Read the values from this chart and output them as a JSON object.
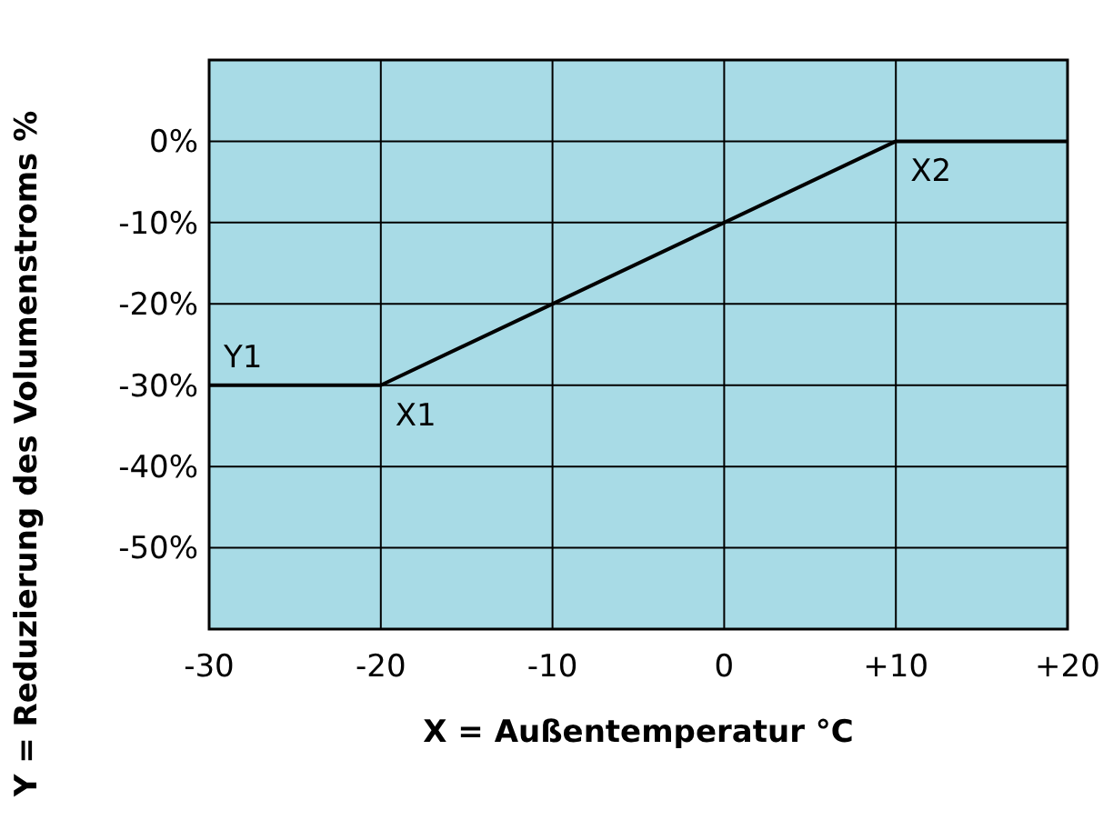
{
  "chart_data": {
    "type": "line",
    "xlabel": "X = Außentemperatur °C",
    "ylabel": "Y = Reduzierung des Volumenstroms %",
    "x": [
      -30,
      -20,
      10,
      20
    ],
    "series": [
      {
        "color": "#000000",
        "values": [
          -30,
          -30,
          0,
          0
        ]
      }
    ],
    "xlim": [
      -30,
      20
    ],
    "xticks": [
      -30,
      -20,
      -10,
      0,
      {
        "value": 10,
        "label": "+10"
      },
      {
        "value": 20,
        "label": "+20"
      }
    ],
    "ylim": [
      -60,
      10
    ],
    "yticks": [
      {
        "value": -60,
        "label": null
      },
      {
        "value": -50,
        "label": "-50%"
      },
      {
        "value": -40,
        "label": "-40%"
      },
      {
        "value": -30,
        "label": "-30%"
      },
      {
        "value": -20,
        "label": "-20%"
      },
      {
        "value": -10,
        "label": "-10%"
      },
      {
        "value": 0,
        "label": "0%"
      },
      {
        "value": 10,
        "label": null
      }
    ],
    "grid": true,
    "marker": "none",
    "line_style": "solid",
    "annotations": [
      {
        "text": "Y1",
        "x": -30,
        "y": -30
      },
      {
        "text": "X1",
        "x": -20,
        "y": -30
      },
      {
        "text": "X2",
        "x": 10,
        "y": 0
      }
    ]
  }
}
